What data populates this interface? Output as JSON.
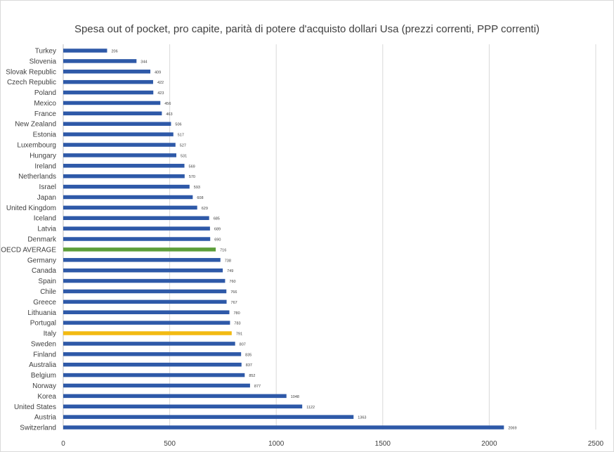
{
  "chart_data": {
    "type": "bar",
    "orientation": "horizontal",
    "title": "Spesa out of pocket, pro capite, parità di potere d'acquisto dollari Usa (prezzi correnti, PPP correnti)",
    "xlabel": "",
    "ylabel": "",
    "xlim": [
      0,
      2500
    ],
    "xticks": [
      "0",
      "500",
      "1000",
      "1500",
      "2000",
      "2500"
    ],
    "grid": "vertical",
    "legend": "none",
    "colors": {
      "default": "#2E59A8",
      "OECD AVERAGE": "#5C9E3A",
      "Italy": "#F2BA12",
      "gridline": "#d9d9d9",
      "axis": "#bfbfbf",
      "text": "#404040"
    },
    "categories": [
      "Turkey",
      "Slovenia",
      "Slovak Republic",
      "Czech Republic",
      "Poland",
      "Mexico",
      "France",
      "New Zealand",
      "Estonia",
      "Luxembourg",
      "Hungary",
      "Ireland",
      "Netherlands",
      "Israel",
      "Japan",
      "United Kingdom",
      "Iceland",
      "Latvia",
      "Denmark",
      "OECD AVERAGE",
      "Germany",
      "Canada",
      "Spain",
      "Chile",
      "Greece",
      "Lithuania",
      "Portugal",
      "Italy",
      "Sweden",
      "Finland",
      "Australia",
      "Belgium",
      "Norway",
      "Korea",
      "United States",
      "Austria",
      "Switzerland"
    ],
    "values": [
      206,
      344,
      409,
      422,
      423,
      456,
      463,
      506,
      517,
      527,
      531,
      569,
      570,
      593,
      608,
      629,
      685,
      689,
      690,
      716,
      738,
      749,
      760,
      766,
      767,
      780,
      783,
      791,
      807,
      835,
      837,
      852,
      877,
      1048,
      1122,
      1363,
      2069
    ],
    "value_labels": [
      "206",
      "344",
      "409",
      "422",
      "423",
      "456",
      "463",
      "506",
      "517",
      "527",
      "531",
      "569",
      "570",
      "593",
      "608",
      "629",
      "685",
      "689",
      "690",
      "716",
      "738",
      "749",
      "760",
      "766",
      "767",
      "780",
      "783",
      "791",
      "807",
      "835",
      "837",
      "852",
      "877",
      "1048",
      "1122",
      "1363",
      "2069"
    ]
  }
}
